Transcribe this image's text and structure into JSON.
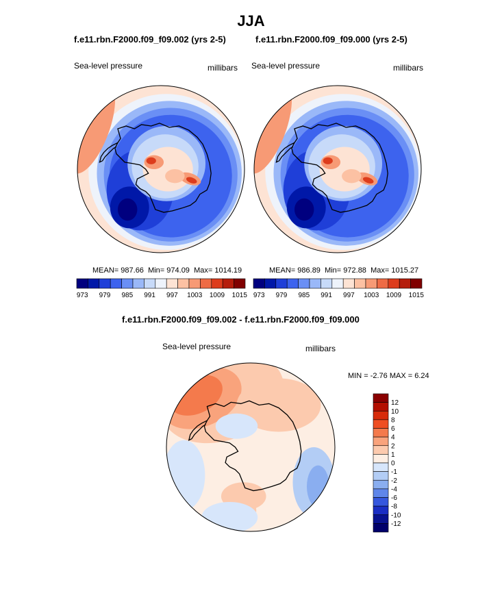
{
  "figure": {
    "title": "JJA"
  },
  "panels": [
    {
      "case_title": "f.e11.rbn.F2000.f09_f09.002 (yrs 2-5)",
      "variable": "Sea-level pressure",
      "units": "millibars",
      "stats": {
        "mean": "987.66",
        "min": "974.09",
        "max": "1014.19"
      }
    },
    {
      "case_title": "f.e11.rbn.F2000.f09_f09.000 (yrs 2-5)",
      "variable": "Sea-level pressure",
      "units": "millibars",
      "stats": {
        "mean": "986.89",
        "min": "972.88",
        "max": "1015.27"
      }
    },
    {
      "case_title": "f.e11.rbn.F2000.f09_f09.002 - f.e11.rbn.F2000.f09_f09.000",
      "variable": "Sea-level pressure",
      "units": "millibars",
      "stats": {
        "min": "-2.76",
        "max": "6.24"
      }
    }
  ],
  "labels": {
    "mean": "MEAN=",
    "min": "Min=",
    "max": "Max=",
    "diff_min": "MIN =",
    "diff_max": "MAX ="
  },
  "chart_data": [
    {
      "type": "heatmap",
      "projection": "south polar stereographic",
      "title": "f.e11.rbn.F2000.f09_f09.002 (yrs 2-5)",
      "variable": "Sea-level pressure",
      "units": "millibars",
      "stats": {
        "mean": 987.66,
        "min": 974.09,
        "max": 1014.19
      },
      "colorbar": {
        "orientation": "horizontal",
        "levels": [
          973,
          976,
          979,
          982,
          985,
          988,
          991,
          994,
          997,
          1000,
          1003,
          1006,
          1009,
          1012,
          1015
        ],
        "tick_labels": [
          "973",
          "979",
          "985",
          "991",
          "997",
          "1003",
          "1009",
          "1015"
        ],
        "colors": [
          "#00007f",
          "#0018a8",
          "#1f3fd8",
          "#3d63ee",
          "#6a8ff5",
          "#9ab8f8",
          "#c7daf9",
          "#eef3fb",
          "#fde3d4",
          "#fcc1a3",
          "#f79a75",
          "#ee6b45",
          "#dd3c1c",
          "#b51d0c",
          "#800000"
        ]
      }
    },
    {
      "type": "heatmap",
      "projection": "south polar stereographic",
      "title": "f.e11.rbn.F2000.f09_f09.000 (yrs 2-5)",
      "variable": "Sea-level pressure",
      "units": "millibars",
      "stats": {
        "mean": 986.89,
        "min": 972.88,
        "max": 1015.27
      },
      "colorbar": {
        "orientation": "horizontal",
        "levels": [
          973,
          976,
          979,
          982,
          985,
          988,
          991,
          994,
          997,
          1000,
          1003,
          1006,
          1009,
          1012,
          1015
        ],
        "tick_labels": [
          "973",
          "979",
          "985",
          "991",
          "997",
          "1003",
          "1009",
          "1015"
        ],
        "colors": [
          "#00007f",
          "#0018a8",
          "#1f3fd8",
          "#3d63ee",
          "#6a8ff5",
          "#9ab8f8",
          "#c7daf9",
          "#eef3fb",
          "#fde3d4",
          "#fcc1a3",
          "#f79a75",
          "#ee6b45",
          "#dd3c1c",
          "#b51d0c",
          "#800000"
        ]
      }
    },
    {
      "type": "heatmap",
      "projection": "south polar stereographic",
      "title": "f.e11.rbn.F2000.f09_f09.002 - f.e11.rbn.F2000.f09_f09.000",
      "variable": "Sea-level pressure",
      "units": "millibars",
      "stats": {
        "min": -2.76,
        "max": 6.24
      },
      "colorbar": {
        "orientation": "vertical",
        "tick_labels": [
          "12",
          "10",
          "8",
          "6",
          "4",
          "2",
          "1",
          "0",
          "-1",
          "-2",
          "-4",
          "-6",
          "-8",
          "-10",
          "-12"
        ],
        "colors": [
          "#8b0000",
          "#b30f00",
          "#d72b0a",
          "#ef4e22",
          "#f47a4c",
          "#f9a37c",
          "#fccaae",
          "#fdeee3",
          "#d7e6fb",
          "#b3cdf5",
          "#8aaef0",
          "#5f86ea",
          "#3557de",
          "#1a2ec4",
          "#08128f",
          "#00006b"
        ]
      }
    }
  ]
}
